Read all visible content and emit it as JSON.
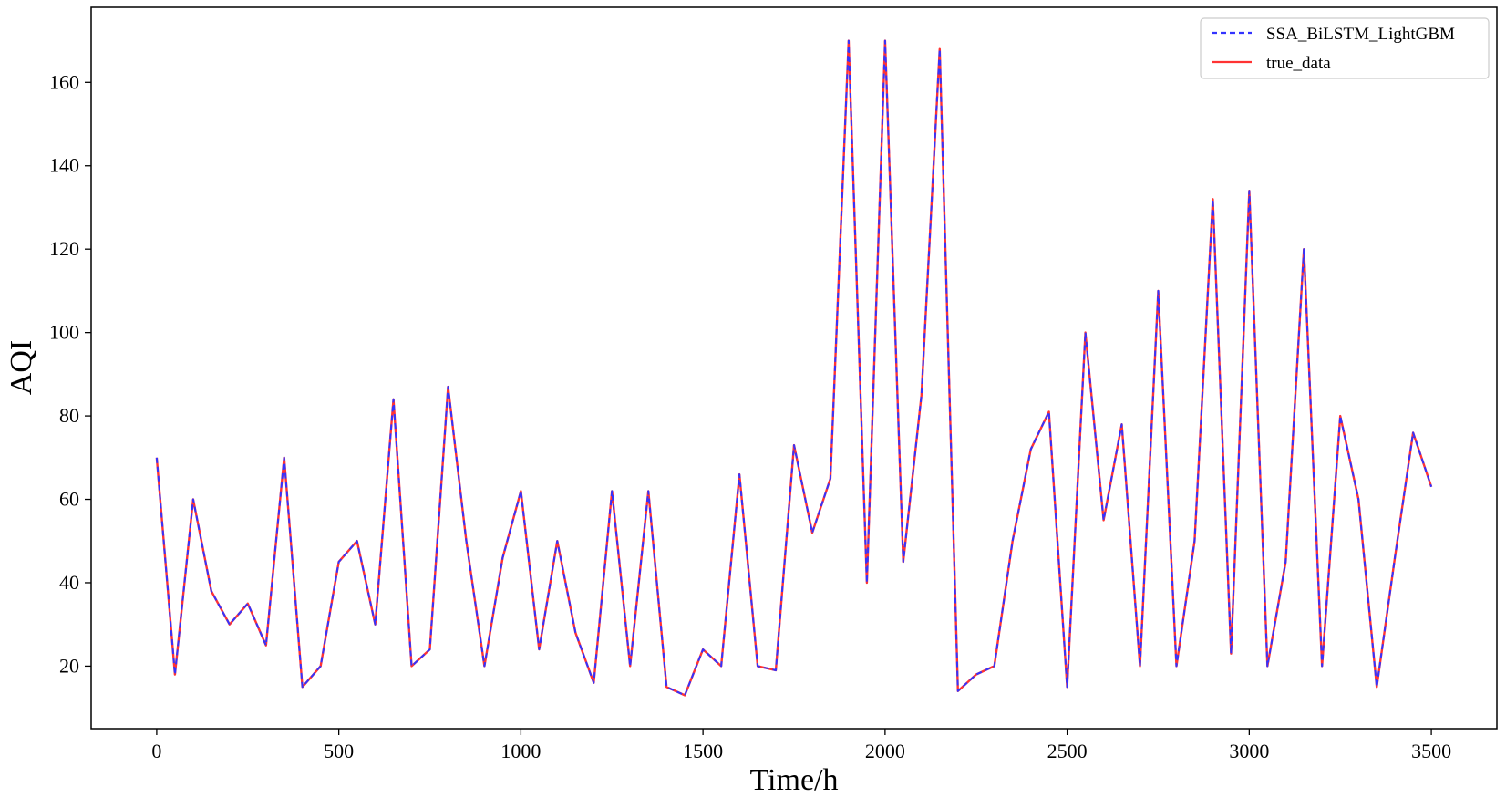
{
  "chart_data": {
    "type": "line",
    "title": "",
    "xlabel": "Time/h",
    "ylabel": "AQI",
    "xlim": [
      -180,
      3680
    ],
    "ylim": [
      5,
      178
    ],
    "xticks": [
      0,
      500,
      1000,
      1500,
      2000,
      2500,
      3000,
      3500
    ],
    "yticks": [
      20,
      40,
      60,
      80,
      100,
      120,
      140,
      160
    ],
    "grid": false,
    "legend_position": "top-right",
    "x": [
      0,
      50,
      100,
      150,
      200,
      250,
      300,
      350,
      400,
      450,
      500,
      550,
      600,
      650,
      700,
      750,
      800,
      850,
      900,
      950,
      1000,
      1050,
      1100,
      1150,
      1200,
      1250,
      1300,
      1350,
      1400,
      1450,
      1500,
      1550,
      1600,
      1650,
      1700,
      1750,
      1800,
      1850,
      1900,
      1950,
      2000,
      2050,
      2100,
      2150,
      2200,
      2250,
      2300,
      2350,
      2400,
      2450,
      2500,
      2550,
      2600,
      2650,
      2700,
      2750,
      2800,
      2850,
      2900,
      2950,
      3000,
      3050,
      3100,
      3150,
      3200,
      3250,
      3300,
      3350,
      3400,
      3450,
      3500
    ],
    "series": [
      {
        "name": "SSA_BiLSTM_LightGBM",
        "color": "#3333ff",
        "style": "dashed",
        "values": [
          70,
          18,
          60,
          38,
          30,
          35,
          25,
          70,
          15,
          20,
          45,
          50,
          30,
          84,
          20,
          24,
          87,
          50,
          20,
          46,
          62,
          24,
          50,
          28,
          16,
          62,
          20,
          62,
          15,
          13,
          24,
          20,
          66,
          20,
          19,
          73,
          52,
          65,
          170,
          40,
          170,
          45,
          85,
          168,
          14,
          18,
          20,
          50,
          72,
          81,
          15,
          100,
          55,
          78,
          20,
          110,
          20,
          50,
          132,
          23,
          134,
          20,
          45,
          120,
          20,
          80,
          60,
          15,
          46,
          76,
          63
        ]
      },
      {
        "name": "true_data",
        "color": "#ff3333",
        "style": "solid",
        "values": [
          70,
          18,
          60,
          38,
          30,
          35,
          25,
          70,
          15,
          20,
          45,
          50,
          30,
          84,
          20,
          24,
          87,
          50,
          20,
          46,
          62,
          24,
          50,
          28,
          16,
          62,
          20,
          62,
          15,
          13,
          24,
          20,
          66,
          20,
          19,
          73,
          52,
          65,
          170,
          40,
          170,
          45,
          85,
          168,
          14,
          18,
          20,
          50,
          72,
          81,
          15,
          100,
          55,
          78,
          20,
          110,
          20,
          50,
          132,
          23,
          134,
          20,
          45,
          120,
          20,
          80,
          60,
          15,
          46,
          76,
          63
        ]
      }
    ]
  }
}
